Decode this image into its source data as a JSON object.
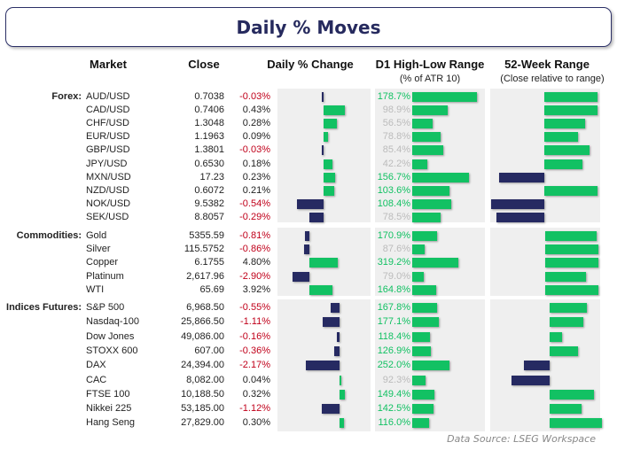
{
  "title": "Daily % Moves",
  "headers": {
    "market": "Market",
    "close": "Close",
    "change": "Daily % Change",
    "d1": "D1 High-Low Range",
    "d1_sub": "(% of ATR 10)",
    "w52": "52-Week Range",
    "w52_sub": "(Close relative to range)"
  },
  "source": "Data Source: LSEG Workspace",
  "colors": {
    "positive": "#12c163",
    "negative": "#262a62",
    "neg_text": "#c0001a",
    "muted_text": "#bbbbbb",
    "panel": "#efefef"
  },
  "chart_data": {
    "type": "table",
    "sections": [
      {
        "label": "Forex:",
        "rows": [
          {
            "market": "AUD/USD",
            "close": "0.7038",
            "change": "-0.03%",
            "change_value": -0.03,
            "d1": "178.7%",
            "d1_value": 178.7,
            "w52_value": 1.0
          },
          {
            "market": "CAD/USD",
            "close": "0.7406",
            "change": "0.43%",
            "change_value": 0.43,
            "d1": "98.9%",
            "d1_value": 98.9,
            "w52_value": 1.0
          },
          {
            "market": "CHF/USD",
            "close": "1.3048",
            "change": "0.28%",
            "change_value": 0.28,
            "d1": "56.5%",
            "d1_value": 56.5,
            "w52_value": 0.77
          },
          {
            "market": "EUR/USD",
            "close": "1.1963",
            "change": "0.09%",
            "change_value": 0.09,
            "d1": "78.8%",
            "d1_value": 78.8,
            "w52_value": 0.63
          },
          {
            "market": "GBP/USD",
            "close": "1.3801",
            "change": "-0.03%",
            "change_value": -0.03,
            "d1": "85.4%",
            "d1_value": 85.4,
            "w52_value": 0.85
          },
          {
            "market": "JPY/USD",
            "close": "0.6530",
            "change": "0.18%",
            "change_value": 0.18,
            "d1": "42.2%",
            "d1_value": 42.2,
            "w52_value": 0.72
          },
          {
            "market": "MXN/USD",
            "close": "17.23",
            "change": "0.23%",
            "change_value": 0.23,
            "d1": "156.7%",
            "d1_value": 156.7,
            "w52_value": -0.85
          },
          {
            "market": "NZD/USD",
            "close": "0.6072",
            "change": "0.21%",
            "change_value": 0.21,
            "d1": "103.6%",
            "d1_value": 103.6,
            "w52_value": 1.0
          },
          {
            "market": "NOK/USD",
            "close": "9.5382",
            "change": "-0.54%",
            "change_value": -0.54,
            "d1": "108.4%",
            "d1_value": 108.4,
            "w52_value": -1.0
          },
          {
            "market": "SEK/USD",
            "close": "8.8057",
            "change": "-0.29%",
            "change_value": -0.29,
            "d1": "78.5%",
            "d1_value": 78.5,
            "w52_value": -0.9
          }
        ]
      },
      {
        "label": "Commodities:",
        "rows": [
          {
            "market": "Gold",
            "close": "5355.59",
            "change": "-0.81%",
            "change_value": -0.81,
            "d1": "170.9%",
            "d1_value": 170.9,
            "w52_value": 0.97
          },
          {
            "market": "Silver",
            "close": "115.5752",
            "change": "-0.86%",
            "change_value": -0.86,
            "d1": "87.6%",
            "d1_value": 87.6,
            "w52_value": 1.0
          },
          {
            "market": "Copper",
            "close": "6.1755",
            "change": "4.80%",
            "change_value": 4.8,
            "d1": "319.2%",
            "d1_value": 319.2,
            "w52_value": 1.0
          },
          {
            "market": "Platinum",
            "close": "2,617.96",
            "change": "-2.90%",
            "change_value": -2.9,
            "d1": "79.0%",
            "d1_value": 79.0,
            "w52_value": 0.77
          },
          {
            "market": "WTI",
            "close": "65.69",
            "change": "3.92%",
            "change_value": 3.92,
            "d1": "164.8%",
            "d1_value": 164.8,
            "w52_value": 1.0
          }
        ]
      },
      {
        "label": "Indices Futures:",
        "rows": [
          {
            "market": "S&P 500",
            "close": "6,968.50",
            "change": "-0.55%",
            "change_value": -0.55,
            "d1": "167.8%",
            "d1_value": 167.8,
            "w52_value": 0.71
          },
          {
            "market": "Nasdaq-100",
            "close": "25,866.50",
            "change": "-1.11%",
            "change_value": -1.11,
            "d1": "177.1%",
            "d1_value": 177.1,
            "w52_value": 0.64
          },
          {
            "market": "Dow Jones",
            "close": "49,086.00",
            "change": "-0.16%",
            "change_value": -0.16,
            "d1": "118.4%",
            "d1_value": 118.4,
            "w52_value": 0.24
          },
          {
            "market": "STOXX 600",
            "close": "607.00",
            "change": "-0.36%",
            "change_value": -0.36,
            "d1": "126.9%",
            "d1_value": 126.9,
            "w52_value": 0.55
          },
          {
            "market": "DAX",
            "close": "24,394.00",
            "change": "-2.17%",
            "change_value": -2.17,
            "d1": "252.0%",
            "d1_value": 252.0,
            "w52_value": -0.49
          },
          {
            "market": "CAC",
            "close": "8,082.00",
            "change": "0.04%",
            "change_value": 0.04,
            "d1": "92.3%",
            "d1_value": 92.3,
            "w52_value": -0.73
          },
          {
            "market": "FTSE 100",
            "close": "10,188.50",
            "change": "0.32%",
            "change_value": 0.32,
            "d1": "149.4%",
            "d1_value": 149.4,
            "w52_value": 0.85
          },
          {
            "market": "Nikkei 225",
            "close": "53,185.00",
            "change": "-1.12%",
            "change_value": -1.12,
            "d1": "142.5%",
            "d1_value": 142.5,
            "w52_value": 0.61
          },
          {
            "market": "Hang Seng",
            "close": "27,829.00",
            "change": "0.30%",
            "change_value": 0.3,
            "d1": "116.0%",
            "d1_value": 116.0,
            "w52_value": 1.0
          }
        ]
      }
    ]
  }
}
